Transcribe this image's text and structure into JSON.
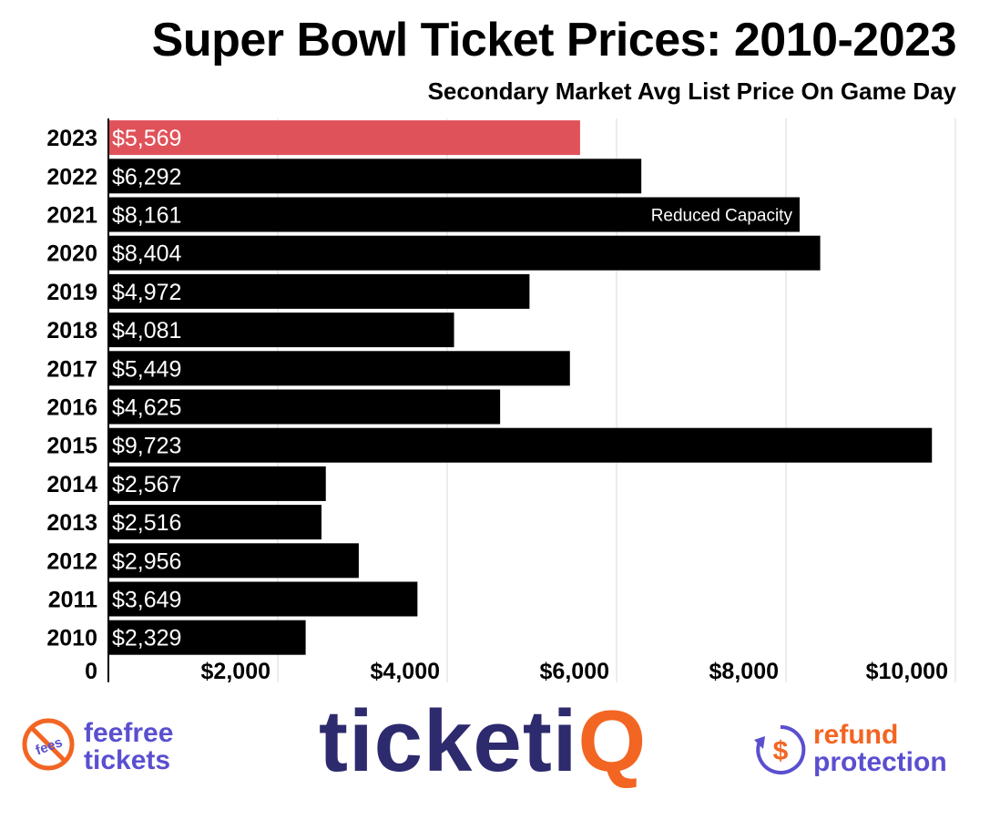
{
  "chart_data": {
    "type": "bar",
    "orientation": "horizontal",
    "title": "Super Bowl Ticket Prices: 2010-2023",
    "subtitle": "Secondary Market Avg List Price On Game Day",
    "categories": [
      "2023",
      "2022",
      "2021",
      "2020",
      "2019",
      "2018",
      "2017",
      "2016",
      "2015",
      "2014",
      "2013",
      "2012",
      "2011",
      "2010"
    ],
    "values": [
      5569,
      6292,
      8161,
      8404,
      4972,
      4081,
      5449,
      4625,
      9723,
      2567,
      2516,
      2956,
      3649,
      2329
    ],
    "value_labels": [
      "$5,569",
      "$6,292",
      "$8,161",
      "$8,404",
      "$4,972",
      "$4,081",
      "$5,449",
      "$4,625",
      "$9,723",
      "$2,567",
      "$2,516",
      "$2,956",
      "$3,649",
      "$2,329"
    ],
    "xlim": [
      0,
      10000
    ],
    "x_ticks": [
      0,
      2000,
      4000,
      6000,
      8000,
      10000
    ],
    "x_tick_labels": [
      "0",
      "$2,000",
      "$4,000",
      "$6,000",
      "$8,000",
      "$10,000"
    ],
    "grid": true,
    "bar_color": "#000000",
    "highlight_color": "#e0525a",
    "highlight_category": "2023",
    "annotations": [
      {
        "category": "2021",
        "text": "Reduced Capacity"
      }
    ]
  },
  "footer": {
    "feefree_line1": "feefree",
    "feefree_line2": "tickets",
    "feefree_badge": "fees",
    "brand_main": "ticketi",
    "brand_accent": "Q",
    "refund_line1": "refund",
    "refund_line2": "protection",
    "refund_symbol": "$",
    "colors": {
      "purple": "#5a4fcf",
      "orange": "#f26522",
      "navy": "#2e2a6e"
    }
  }
}
